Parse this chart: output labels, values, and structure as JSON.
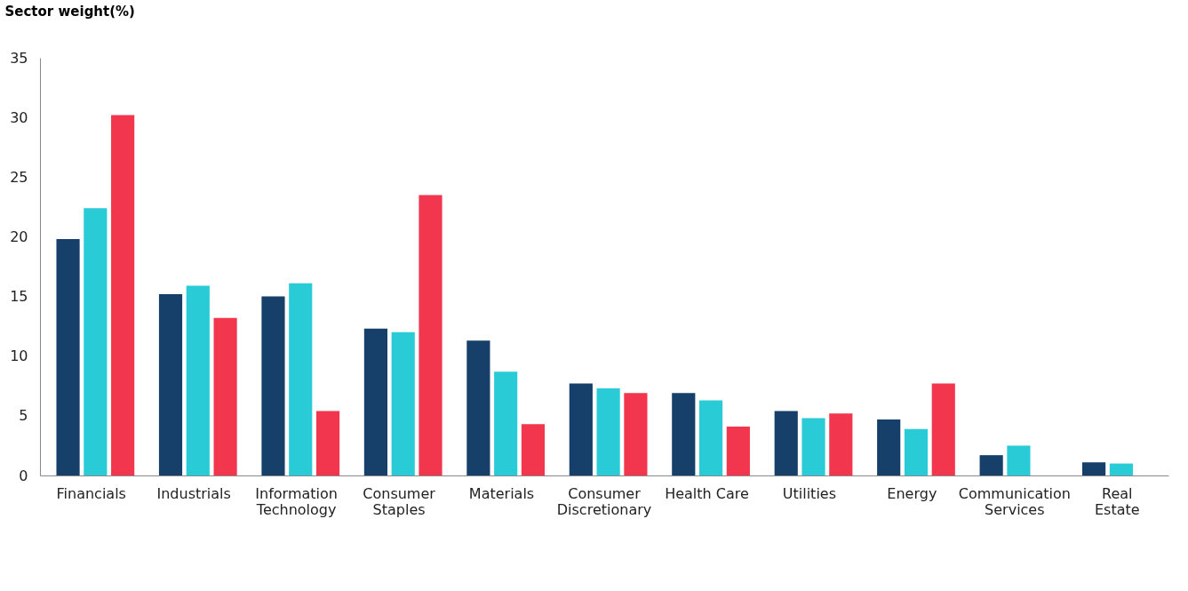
{
  "chart_data": {
    "type": "bar",
    "ylabel": "Sector weight(%)",
    "categories": [
      "Financials",
      "Industrials",
      "Information\nTechnology",
      "Consumer\nStaples",
      "Materials",
      "Consumer\nDiscretionary",
      "Health Care",
      "Utilities",
      "Energy",
      "Communication\nServices",
      "Real\nEstate"
    ],
    "series": [
      {
        "color": "#16406a",
        "values": [
          19.8,
          15.2,
          15.0,
          12.3,
          11.3,
          7.7,
          6.9,
          5.4,
          4.7,
          1.7,
          1.1
        ]
      },
      {
        "color": "#29ccd6",
        "values": [
          22.4,
          15.9,
          16.1,
          12.0,
          8.7,
          7.3,
          6.3,
          4.8,
          3.9,
          2.5,
          1.0
        ]
      },
      {
        "color": "#f2364e",
        "values": [
          30.2,
          13.2,
          5.4,
          23.5,
          4.3,
          6.9,
          4.1,
          5.2,
          7.7,
          null,
          null
        ]
      }
    ],
    "ylim": [
      0,
      35
    ],
    "yticks": [
      0,
      5,
      10,
      15,
      20,
      25,
      30,
      35
    ],
    "grid": false,
    "legend": false
  }
}
